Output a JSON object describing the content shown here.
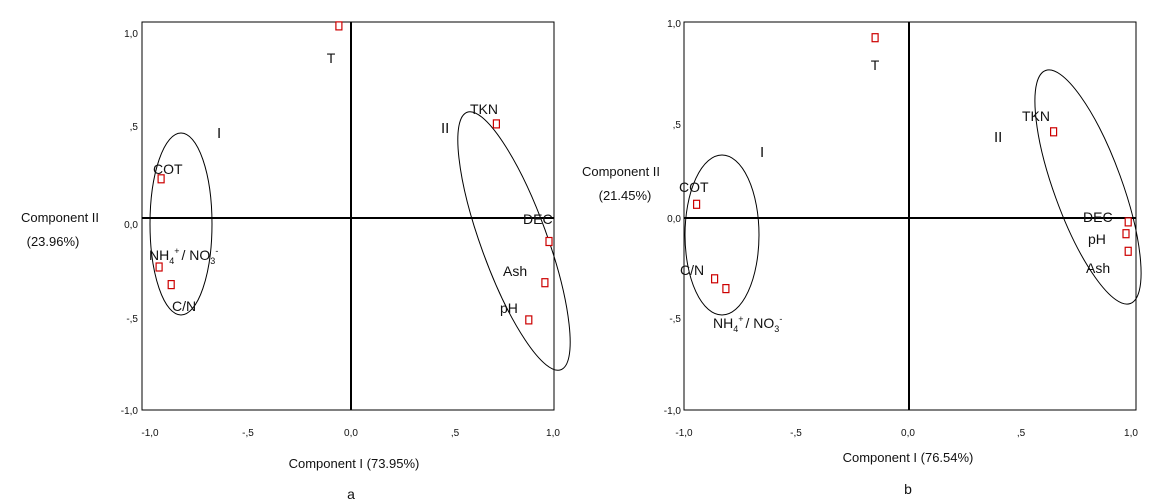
{
  "chart_data": [
    {
      "type": "scatter",
      "panel": "a",
      "xlabel": "Component I (73.95%)",
      "ylabel": [
        "Component II",
        "(23.96%)"
      ],
      "xlim": [
        -1.0,
        1.0
      ],
      "ylim": [
        -1.0,
        1.0
      ],
      "xticks": [
        "-1,0",
        "-,5",
        "0,0",
        ",5",
        "1,0"
      ],
      "yticks": [
        "1,0",
        ",5",
        "0,0",
        "-,5",
        "-1,0"
      ],
      "points": [
        {
          "name": "T",
          "x": -0.06,
          "y": 0.98
        },
        {
          "name": "TKN",
          "x": 0.72,
          "y": 0.48
        },
        {
          "name": "COT",
          "x": -0.94,
          "y": 0.2
        },
        {
          "name": "DEC",
          "x": 0.98,
          "y": -0.12
        },
        {
          "name": "Ash",
          "x": 0.96,
          "y": -0.33
        },
        {
          "name": "pH",
          "x": 0.88,
          "y": -0.52
        },
        {
          "name": "NH4/NO3",
          "x": -0.95,
          "y": -0.25
        },
        {
          "name": "C/N",
          "x": -0.89,
          "y": -0.34
        }
      ],
      "groups": [
        {
          "label": "I",
          "center": [
            -0.83,
            -0.03
          ],
          "rx": 0.15,
          "ry": 0.41,
          "rotation": 0
        },
        {
          "label": "II",
          "center": [
            0.79,
            0.04
          ],
          "rx": 0.15,
          "ry": 0.74,
          "rotation": 20
        }
      ],
      "grid": false
    },
    {
      "type": "scatter",
      "panel": "b",
      "xlabel": "Component I (76.54%)",
      "ylabel": [
        "Component II",
        "(21.45%)"
      ],
      "xlim": [
        -1.0,
        1.0
      ],
      "ylim": [
        -1.0,
        1.0
      ],
      "xticks": [
        "-1,0",
        "-,5",
        "0,0",
        ",5",
        "1,0"
      ],
      "yticks": [
        "1,0",
        ",5",
        "0,0",
        "-,5",
        "-1,0"
      ],
      "points": [
        {
          "name": "T",
          "x": -0.15,
          "y": 0.92
        },
        {
          "name": "TKN",
          "x": 0.64,
          "y": 0.44
        },
        {
          "name": "COT",
          "x": -0.94,
          "y": 0.07
        },
        {
          "name": "DEC",
          "x": 0.97,
          "y": -0.02
        },
        {
          "name": "pH",
          "x": 0.96,
          "y": -0.08
        },
        {
          "name": "Ash",
          "x": 0.97,
          "y": -0.17
        },
        {
          "name": "C/N",
          "x": -0.86,
          "y": -0.31
        },
        {
          "name": "NH4/NO3",
          "x": -0.81,
          "y": -0.36
        }
      ],
      "groups": [
        {
          "label": "I",
          "center": [
            -0.82,
            -0.09
          ],
          "rx": 0.15,
          "ry": 0.4,
          "rotation": 0
        },
        {
          "label": "II",
          "center": [
            0.85,
            0.16
          ],
          "rx": 0.15,
          "ry": 0.62,
          "rotation": 20
        }
      ],
      "grid": false
    }
  ],
  "labels": {
    "ticks_x": [
      "-1,0",
      "-,5",
      "0,0",
      ",5",
      "1,0"
    ],
    "ticks_y": [
      "1,0",
      ",5",
      "0,0",
      "-,5",
      "-1,0"
    ],
    "panel_a": {
      "letter": "a",
      "xlabel": "Component I (73.95%)",
      "ylabel_line1": "Component II",
      "ylabel_line2": "(23.96%)",
      "group_I": "I",
      "group_II": "II",
      "T": "T",
      "TKN": "TKN",
      "COT": "COT",
      "DEC": "DEC",
      "Ash": "Ash",
      "pH": "pH",
      "CN": "C/N",
      "NH": "NH",
      "NH_sub": "4",
      "NH_sup": "+",
      "sep": "/ NO",
      "NO_sub": "3",
      "NO_sup": "-"
    },
    "panel_b": {
      "letter": "b",
      "xlabel": "Component I (76.54%)",
      "ylabel_line1": "Component II",
      "ylabel_line2": "(21.45%)",
      "group_I": "I",
      "group_II": "II",
      "T": "T",
      "TKN": "TKN",
      "COT": "COT",
      "DEC": "DEC",
      "Ash": "Ash",
      "pH": "pH",
      "CN": "C/N",
      "NH": "NH",
      "NH_sub": "4",
      "NH_sup": "+",
      "sep": "/ NO",
      "NO_sub": "3",
      "NO_sup": "-"
    }
  },
  "colors": {
    "marker": "#cc0000",
    "axis": "#000000",
    "text": "#111111"
  }
}
